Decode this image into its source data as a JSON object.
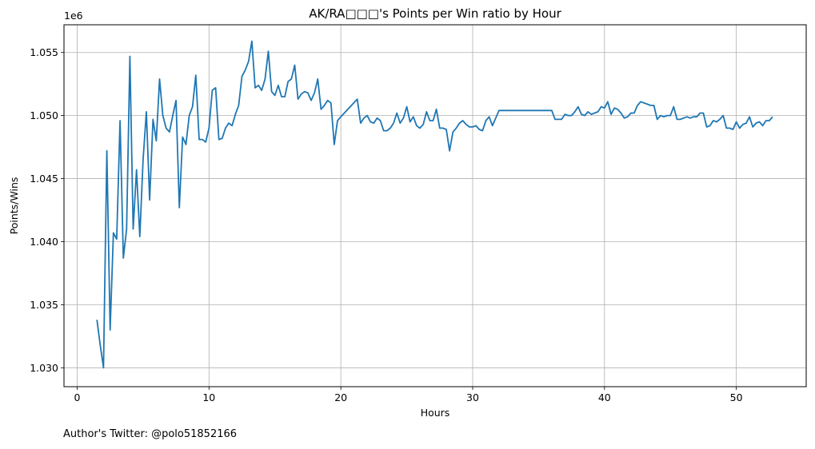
{
  "chart_data": {
    "type": "line",
    "title": "AK/RA□□□'s Points per Win ratio by Hour",
    "xlabel": "Hours",
    "ylabel": "Points/Wins",
    "y_offset_label": "1e6",
    "xlim": [
      -1,
      55.3
    ],
    "ylim": [
      1.0285,
      1.0572
    ],
    "x_ticks": [
      0,
      10,
      20,
      30,
      40,
      50
    ],
    "x_tick_labels": [
      "0",
      "10",
      "20",
      "30",
      "40",
      "50"
    ],
    "y_ticks": [
      1.03,
      1.035,
      1.04,
      1.045,
      1.05,
      1.055
    ],
    "y_tick_labels": [
      "1.030",
      "1.035",
      "1.040",
      "1.045",
      "1.050",
      "1.055"
    ],
    "grid": true,
    "line_color": "#1f77b4",
    "series": [
      {
        "x": [
          1.5,
          1.75,
          2.0,
          2.25,
          2.5,
          2.75,
          3.0,
          3.25,
          3.5,
          3.75,
          4.0,
          4.25,
          4.5,
          4.75,
          5.0,
          5.25,
          5.5,
          5.75,
          6.0,
          6.25,
          6.5,
          6.75,
          7.0,
          7.25,
          7.5,
          7.75,
          8.0,
          8.25,
          8.5,
          8.75,
          9.0,
          9.25,
          9.5,
          9.75,
          10.0,
          10.25,
          10.5,
          10.75,
          11.0,
          11.25,
          11.5,
          11.75,
          12.0,
          12.25,
          12.5,
          12.75,
          13.0,
          13.25,
          13.5,
          13.75,
          14.0,
          14.25,
          14.5,
          14.75,
          15.0,
          15.25,
          15.5,
          15.75,
          16.0,
          16.25,
          16.5,
          16.75,
          17.0,
          17.25,
          17.5,
          17.75,
          18.0,
          18.25,
          18.5,
          18.75,
          19.0,
          19.25,
          19.5,
          19.75,
          20.0,
          21.25,
          21.5,
          21.75,
          22.0,
          22.25,
          22.5,
          22.75,
          23.0,
          23.25,
          23.5,
          23.75,
          24.0,
          24.25,
          24.5,
          24.75,
          25.0,
          25.25,
          25.5,
          25.75,
          26.0,
          26.25,
          26.5,
          26.75,
          27.0,
          27.25,
          27.5,
          27.75,
          28.0,
          28.25,
          28.5,
          28.75,
          29.0,
          29.25,
          29.5,
          29.75,
          30.0,
          30.25,
          30.5,
          30.75,
          31.0,
          31.25,
          31.5,
          31.75,
          32.0,
          32.25,
          36.0,
          36.25,
          36.5,
          36.75,
          37.0,
          37.25,
          37.5,
          37.75,
          38.0,
          38.25,
          38.5,
          38.75,
          39.0,
          39.25,
          39.5,
          39.75,
          40.0,
          40.25,
          40.5,
          40.75,
          41.0,
          41.25,
          41.5,
          41.75,
          42.0,
          42.25,
          42.5,
          42.75,
          43.0,
          43.25,
          43.5,
          43.75,
          44.0,
          44.25,
          44.5,
          44.75,
          45.0,
          45.25,
          45.5,
          45.75,
          46.0,
          46.25,
          46.5,
          46.75,
          47.0,
          47.25,
          47.5,
          47.75,
          48.0,
          48.25,
          48.5,
          48.75,
          49.0,
          49.25,
          49.5,
          49.75,
          50.0,
          50.25,
          50.5,
          50.75,
          51.0,
          51.25,
          51.5,
          51.75,
          52.0,
          52.25,
          52.5,
          52.75
        ],
        "y": [
          1.0338,
          1.0318,
          1.03,
          1.0472,
          1.033,
          1.0407,
          1.0402,
          1.0496,
          1.0387,
          1.041,
          1.0547,
          1.041,
          1.0457,
          1.0404,
          1.0465,
          1.0503,
          1.0433,
          1.0497,
          1.048,
          1.0529,
          1.05,
          1.049,
          1.0487,
          1.05,
          1.0512,
          1.0427,
          1.0483,
          1.0477,
          1.05,
          1.0507,
          1.0532,
          1.0481,
          1.0481,
          1.0479,
          1.049,
          1.052,
          1.0522,
          1.0481,
          1.0482,
          1.049,
          1.0494,
          1.0492,
          1.0501,
          1.0508,
          1.0531,
          1.0536,
          1.0543,
          1.0559,
          1.0522,
          1.0524,
          1.052,
          1.0529,
          1.0551,
          1.0519,
          1.0516,
          1.0524,
          1.0515,
          1.0515,
          1.0527,
          1.0529,
          1.054,
          1.0513,
          1.0517,
          1.0519,
          1.0518,
          1.0512,
          1.0518,
          1.0529,
          1.0505,
          1.0508,
          1.0512,
          1.051,
          1.0477,
          1.0496,
          1.0499,
          1.0513,
          1.0494,
          1.0498,
          1.05,
          1.0495,
          1.0494,
          1.0498,
          1.0496,
          1.0488,
          1.0488,
          1.049,
          1.0494,
          1.0502,
          1.0494,
          1.0498,
          1.0507,
          1.0495,
          1.0499,
          1.0492,
          1.049,
          1.0493,
          1.0503,
          1.0496,
          1.0496,
          1.0505,
          1.049,
          1.049,
          1.0489,
          1.0472,
          1.0487,
          1.049,
          1.0494,
          1.0496,
          1.0493,
          1.0491,
          1.0491,
          1.0492,
          1.0489,
          1.0488,
          1.0496,
          1.0499,
          1.0492,
          1.0498,
          1.0504,
          1.0504,
          1.0504,
          1.0497,
          1.0497,
          1.0497,
          1.0501,
          1.05,
          1.05,
          1.0503,
          1.0507,
          1.0501,
          1.05,
          1.0503,
          1.0501,
          1.0502,
          1.0503,
          1.0507,
          1.0506,
          1.0511,
          1.0501,
          1.0506,
          1.0505,
          1.0502,
          1.0498,
          1.0499,
          1.0502,
          1.0502,
          1.0508,
          1.0511,
          1.051,
          1.0509,
          1.0508,
          1.0508,
          1.0497,
          1.05,
          1.0499,
          1.05,
          1.05,
          1.0507,
          1.0497,
          1.0497,
          1.0498,
          1.0499,
          1.0498,
          1.0499,
          1.0499,
          1.0502,
          1.0502,
          1.0491,
          1.0492,
          1.0496,
          1.0495,
          1.0497,
          1.05,
          1.049,
          1.049,
          1.0489,
          1.0495,
          1.049,
          1.0493,
          1.0494,
          1.0499,
          1.0491,
          1.0494,
          1.0495,
          1.0492,
          1.0496,
          1.0496,
          1.0499
        ]
      }
    ]
  },
  "footnote": "Author's Twitter: @polo51852166"
}
